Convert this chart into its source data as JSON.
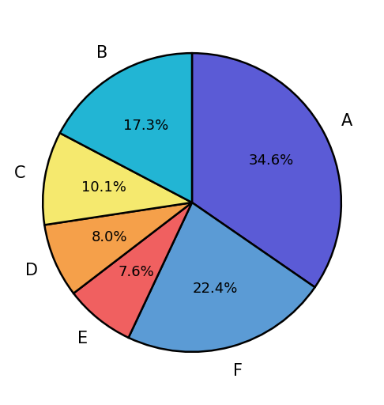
{
  "labels": [
    "A",
    "F",
    "E",
    "D",
    "C",
    "B"
  ],
  "values": [
    34.6,
    22.4,
    7.6,
    8.0,
    10.1,
    17.3
  ],
  "colors": [
    "#5b5bd6",
    "#5b9bd5",
    "#f06060",
    "#f5a04a",
    "#f5e96e",
    "#22b5d4"
  ],
  "pct_labels": [
    "34.6%",
    "22.4%",
    "7.6%",
    "8.0%",
    "10.1%",
    "17.3%"
  ],
  "startangle": 90,
  "figsize": [
    4.86,
    5.12
  ],
  "dpi": 100,
  "edge_color": "#000000",
  "edge_width": 1.8,
  "text_fontsize": 13,
  "label_fontsize": 15,
  "label_r": 1.17,
  "text_r": 0.6
}
